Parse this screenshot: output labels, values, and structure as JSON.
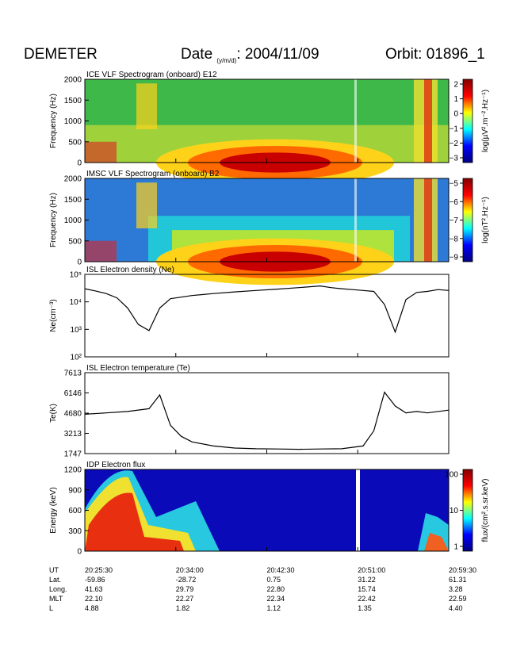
{
  "header": {
    "satellite": "DEMETER",
    "date_label": "Date",
    "date_subscript": "(y/m/d)",
    "date_value": ": 2004/11/09",
    "orbit": "Orbit: 01896_1"
  },
  "chart_data": [
    {
      "type": "heatmap",
      "title": "ICE VLF Spectrogram (onboard) E12",
      "ylabel": "Frequency (Hz)",
      "ylim": [
        0,
        2000
      ],
      "yticks": [
        "0",
        "500",
        "1000",
        "1500",
        "2000"
      ],
      "colorbar": {
        "label": "log(µV².m⁻².Hz⁻¹)",
        "ticks": [
          "2",
          "1",
          "0",
          "−1",
          "−2",
          "−3"
        ],
        "range": [
          -3,
          2.5
        ]
      }
    },
    {
      "type": "heatmap",
      "title": "IMSC VLF Spectrogram (onboard) B2",
      "ylabel": "Frequency (Hz)",
      "ylim": [
        0,
        2000
      ],
      "yticks": [
        "0",
        "500",
        "1000",
        "1500",
        "2000"
      ],
      "colorbar": {
        "label": "log(nT².Hz⁻¹)",
        "ticks": [
          "−5",
          "−6",
          "−7",
          "−8",
          "−9"
        ],
        "range": [
          -9,
          -5
        ]
      }
    },
    {
      "type": "line",
      "title": "ISL Electron density (Ne)",
      "ylabel": "Ne(cm⁻³)",
      "yscale": "log",
      "ylim": [
        100,
        100000
      ],
      "yticks": [
        "10²",
        "10³",
        "10⁴",
        "10⁵"
      ],
      "xrange_min": [
        0,
        34
      ],
      "series": [
        {
          "x": [
            0,
            1,
            2,
            3,
            4,
            5,
            6,
            7,
            8,
            10,
            12,
            14,
            16,
            18,
            20,
            22,
            23,
            24,
            25,
            26,
            27,
            28,
            29,
            30,
            31,
            32,
            33,
            34
          ],
          "y": [
            30000,
            25000,
            20000,
            14000,
            6000,
            1500,
            900,
            6000,
            13000,
            17000,
            20000,
            23000,
            26000,
            29000,
            33000,
            38000,
            33000,
            30000,
            28000,
            26000,
            24000,
            8000,
            800,
            12000,
            22000,
            24000,
            28000,
            26000
          ]
        }
      ]
    },
    {
      "type": "line",
      "title": "ISL Electron temperature (Te)",
      "ylabel": "Te(K)",
      "ylim": [
        1747,
        7613
      ],
      "yticks": [
        "1747",
        "3213",
        "4680",
        "6146",
        "7613"
      ],
      "xrange_min": [
        0,
        34
      ],
      "series": [
        {
          "x": [
            0,
            2,
            4,
            6,
            7,
            8,
            9,
            10,
            12,
            14,
            16,
            18,
            20,
            22,
            24,
            26,
            27,
            28,
            29,
            30,
            31,
            32,
            34
          ],
          "y": [
            4600,
            4700,
            4800,
            5000,
            6000,
            3800,
            3000,
            2600,
            2300,
            2150,
            2100,
            2080,
            2060,
            2080,
            2100,
            2300,
            3400,
            6200,
            5200,
            4700,
            4800,
            4700,
            4900
          ]
        }
      ]
    },
    {
      "type": "heatmap",
      "title": "IDP Electron flux",
      "ylabel": "Energy (keV)",
      "ylim": [
        0,
        1200
      ],
      "yticks": [
        "0",
        "300",
        "600",
        "900",
        "1200"
      ],
      "colorbar": {
        "label": "flux/(cm².s.sr.keV)",
        "ticks": [
          "100",
          "10",
          "1"
        ],
        "range": [
          1,
          600
        ],
        "scale": "log"
      }
    }
  ],
  "xaxis": {
    "row_labels": [
      "UT",
      "Lat.",
      "Long.",
      "MLT",
      "L"
    ],
    "columns": [
      [
        "20:25:30",
        "-59.86",
        "41.63",
        "22.10",
        "4.88"
      ],
      [
        "20:34:00",
        "-28.72",
        "29.79",
        "22.27",
        "1.82"
      ],
      [
        "20:42:30",
        "0.75",
        "22.80",
        "22.34",
        "1.12"
      ],
      [
        "20:51:00",
        "31.22",
        "15.74",
        "22.42",
        "1.35"
      ],
      [
        "20:59:30",
        "61.31",
        "3.28",
        "22.59",
        "4.40"
      ]
    ]
  }
}
